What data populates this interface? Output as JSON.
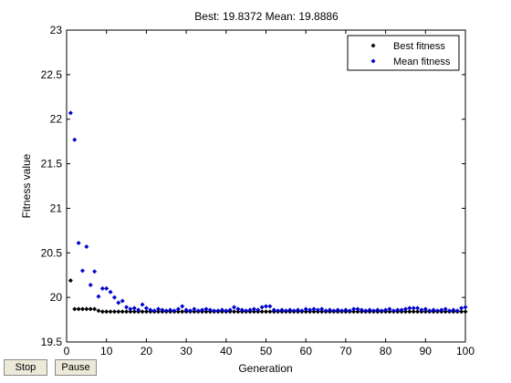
{
  "chart_data": {
    "type": "scatter",
    "title": "Best: 19.8372 Mean: 19.8886",
    "xlabel": "Generation",
    "ylabel": "Fitness value",
    "xlim": [
      0,
      100
    ],
    "ylim": [
      19.5,
      23
    ],
    "xticks": [
      0,
      10,
      20,
      30,
      40,
      50,
      60,
      70,
      80,
      90,
      100
    ],
    "yticks": [
      19.5,
      20,
      20.5,
      21,
      21.5,
      22,
      22.5,
      23
    ],
    "ytick_labels": [
      "19.5",
      "20",
      "20.5",
      "21",
      "21.5",
      "22",
      "22.5",
      "23"
    ],
    "grid": false,
    "legend_position": "top-right",
    "series": [
      {
        "name": "Best fitness",
        "color": "#000000",
        "x": [
          1,
          2,
          3,
          4,
          5,
          6,
          7,
          8,
          9,
          10,
          11,
          12,
          13,
          14,
          15,
          16,
          17,
          18,
          19,
          20,
          21,
          22,
          23,
          24,
          25,
          26,
          27,
          28,
          29,
          30,
          31,
          32,
          33,
          34,
          35,
          36,
          37,
          38,
          39,
          40,
          41,
          42,
          43,
          44,
          45,
          46,
          47,
          48,
          49,
          50,
          51,
          52,
          53,
          54,
          55,
          56,
          57,
          58,
          59,
          60,
          61,
          62,
          63,
          64,
          65,
          66,
          67,
          68,
          69,
          70,
          71,
          72,
          73,
          74,
          75,
          76,
          77,
          78,
          79,
          80,
          81,
          82,
          83,
          84,
          85,
          86,
          87,
          88,
          89,
          90,
          91,
          92,
          93,
          94,
          95,
          96,
          97,
          98,
          99,
          100
        ],
        "values": [
          20.19,
          19.87,
          19.87,
          19.87,
          19.87,
          19.87,
          19.87,
          19.85,
          19.84,
          19.84,
          19.84,
          19.84,
          19.84,
          19.84,
          19.84,
          19.84,
          19.84,
          19.84,
          19.84,
          19.84,
          19.84,
          19.84,
          19.84,
          19.84,
          19.84,
          19.84,
          19.84,
          19.84,
          19.84,
          19.84,
          19.84,
          19.84,
          19.84,
          19.84,
          19.84,
          19.84,
          19.84,
          19.84,
          19.84,
          19.84,
          19.84,
          19.84,
          19.84,
          19.84,
          19.84,
          19.84,
          19.84,
          19.84,
          19.84,
          19.84,
          19.84,
          19.84,
          19.84,
          19.84,
          19.84,
          19.84,
          19.84,
          19.84,
          19.84,
          19.84,
          19.84,
          19.84,
          19.84,
          19.84,
          19.84,
          19.84,
          19.84,
          19.84,
          19.84,
          19.84,
          19.84,
          19.84,
          19.84,
          19.84,
          19.84,
          19.84,
          19.84,
          19.84,
          19.84,
          19.84,
          19.84,
          19.84,
          19.84,
          19.84,
          19.84,
          19.84,
          19.84,
          19.84,
          19.84,
          19.84,
          19.84,
          19.84,
          19.84,
          19.84,
          19.84,
          19.84,
          19.84,
          19.84,
          19.84,
          19.84
        ]
      },
      {
        "name": "Mean fitness",
        "color": "#0000cc",
        "x": [
          1,
          2,
          3,
          4,
          5,
          6,
          7,
          8,
          9,
          10,
          11,
          12,
          13,
          14,
          15,
          16,
          17,
          18,
          19,
          20,
          21,
          22,
          23,
          24,
          25,
          26,
          27,
          28,
          29,
          30,
          31,
          32,
          33,
          34,
          35,
          36,
          37,
          38,
          39,
          40,
          41,
          42,
          43,
          44,
          45,
          46,
          47,
          48,
          49,
          50,
          51,
          52,
          53,
          54,
          55,
          56,
          57,
          58,
          59,
          60,
          61,
          62,
          63,
          64,
          65,
          66,
          67,
          68,
          69,
          70,
          71,
          72,
          73,
          74,
          75,
          76,
          77,
          78,
          79,
          80,
          81,
          82,
          83,
          84,
          85,
          86,
          87,
          88,
          89,
          90,
          91,
          92,
          93,
          94,
          95,
          96,
          97,
          98,
          99,
          100
        ],
        "values": [
          22.07,
          21.77,
          20.61,
          20.3,
          20.57,
          20.14,
          20.29,
          20.01,
          20.1,
          20.1,
          20.06,
          20.0,
          19.94,
          19.96,
          19.89,
          19.87,
          19.88,
          19.86,
          19.92,
          19.88,
          19.86,
          19.85,
          19.87,
          19.86,
          19.85,
          19.86,
          19.85,
          19.87,
          19.9,
          19.86,
          19.85,
          19.87,
          19.85,
          19.86,
          19.87,
          19.86,
          19.85,
          19.85,
          19.86,
          19.85,
          19.86,
          19.89,
          19.87,
          19.86,
          19.85,
          19.86,
          19.87,
          19.86,
          19.89,
          19.9,
          19.9,
          19.86,
          19.85,
          19.86,
          19.85,
          19.86,
          19.85,
          19.86,
          19.85,
          19.87,
          19.86,
          19.87,
          19.86,
          19.87,
          19.85,
          19.86,
          19.85,
          19.86,
          19.85,
          19.86,
          19.85,
          19.87,
          19.87,
          19.86,
          19.85,
          19.86,
          19.85,
          19.86,
          19.85,
          19.86,
          19.87,
          19.85,
          19.86,
          19.86,
          19.87,
          19.88,
          19.88,
          19.88,
          19.86,
          19.87,
          19.85,
          19.86,
          19.85,
          19.86,
          19.87,
          19.85,
          19.86,
          19.85,
          19.88,
          19.89
        ]
      }
    ]
  },
  "controls": {
    "stop_label": "Stop",
    "pause_label": "Pause"
  }
}
